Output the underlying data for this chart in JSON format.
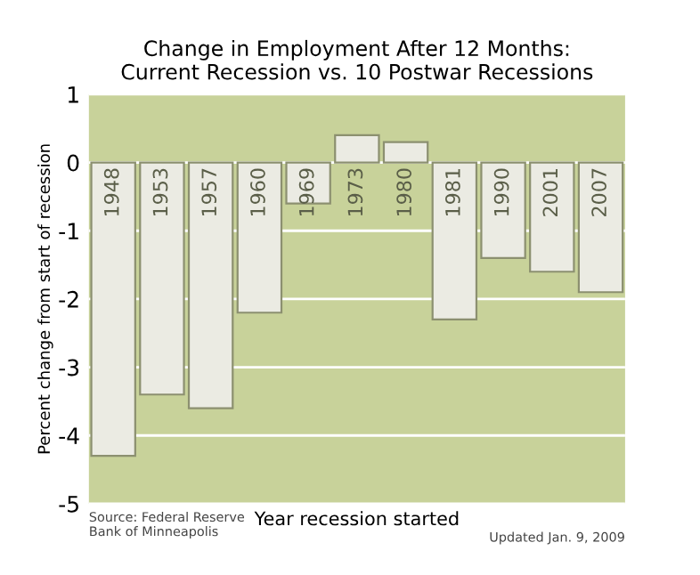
{
  "chart_data": {
    "type": "bar",
    "title": "Change in Employment After 12 Months:\nCurrent Recession vs. 10 Postwar Recessions",
    "xlabel": "Year recession started",
    "ylabel": "Percent change from start of recession",
    "categories": [
      "1948",
      "1953",
      "1957",
      "1960",
      "1969",
      "1973",
      "1980",
      "1981",
      "1990",
      "2001",
      "2007"
    ],
    "values": [
      -4.3,
      -3.4,
      -3.6,
      -2.2,
      -0.6,
      0.4,
      0.3,
      -2.3,
      -1.4,
      -1.6,
      -1.9
    ],
    "color": "#ebebe3",
    "ylim": [
      -5,
      1
    ],
    "yticks": [
      -5,
      -4,
      -3,
      -2,
      -1,
      0,
      1
    ],
    "grid": "y",
    "annotations": [
      "Source: Federal Reserve\nBank of Minneapolis",
      "Updated Jan. 9, 2009"
    ]
  }
}
